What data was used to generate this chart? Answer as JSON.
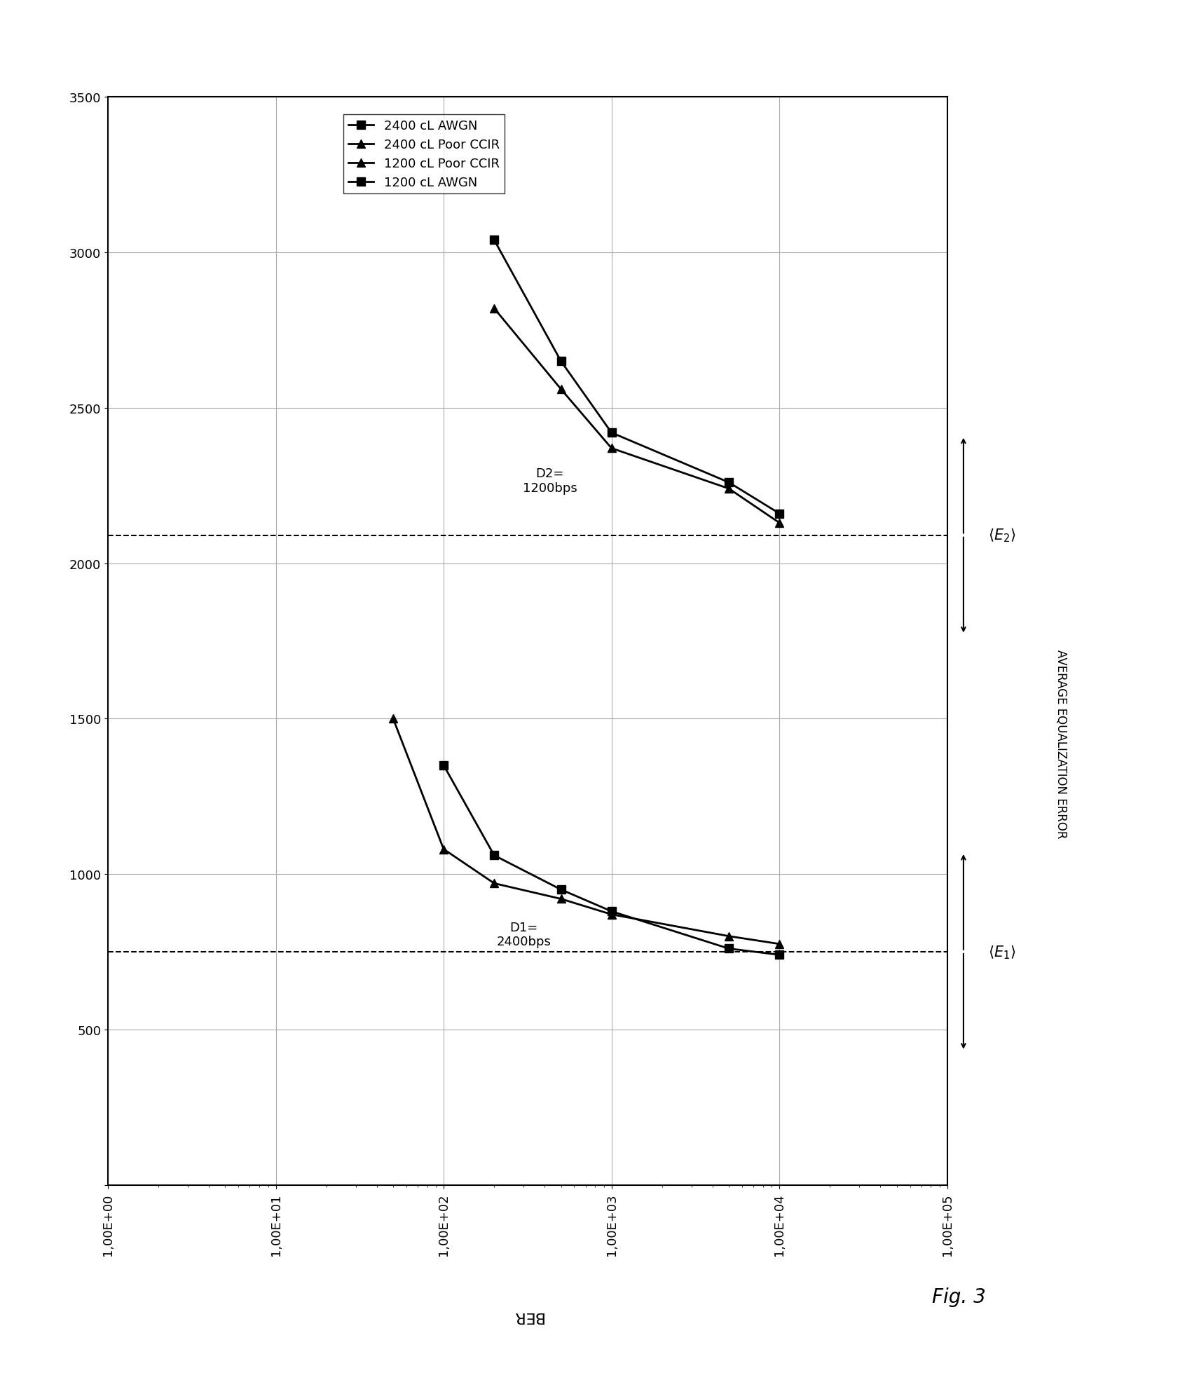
{
  "xlabel": "BER",
  "ylabel": "AVERAGE EQUALIZATION ERROR",
  "xlim_log": [
    1.0,
    100000.0
  ],
  "ylim": [
    0,
    3500
  ],
  "yticks": [
    0,
    500,
    1000,
    1500,
    2000,
    2500,
    3000,
    3500
  ],
  "xtick_vals": [
    1.0,
    10.0,
    100.0,
    1000.0,
    10000.0,
    100000.0
  ],
  "xtick_labels": [
    "1,00E+00",
    "1,00E+01",
    "1,00E+02",
    "1,00E+03",
    "1,00E+04",
    "1,00E+05"
  ],
  "series": [
    {
      "label": "2400 cL AWGN",
      "marker": "s",
      "x": [
        100.0,
        200.0,
        500.0,
        1000.0,
        5000.0,
        10000.0
      ],
      "y": [
        1350,
        1060,
        950,
        880,
        760,
        740
      ]
    },
    {
      "label": "2400 cL Poor CCIR",
      "marker": "^",
      "x": [
        50.0,
        100.0,
        200.0,
        500.0,
        1000.0,
        5000.0,
        10000.0
      ],
      "y": [
        1500,
        1080,
        970,
        920,
        870,
        800,
        775
      ]
    },
    {
      "label": "1200 cL Poor CCIR",
      "marker": "^",
      "x": [
        200.0,
        500.0,
        1000.0,
        5000.0,
        10000.0
      ],
      "y": [
        2820,
        2560,
        2370,
        2240,
        2130
      ]
    },
    {
      "label": "1200 cL AWGN",
      "marker": "s",
      "x": [
        200.0,
        500.0,
        1000.0,
        5000.0,
        10000.0
      ],
      "y": [
        3040,
        2650,
        2420,
        2260,
        2160
      ]
    }
  ],
  "E1_y": 750,
  "E2_y": 2090,
  "D1_label": "D1=\n2400bps",
  "D1_x": 300.0,
  "D1_y": 850,
  "D2_label": "D2=\n1200bps",
  "D2_x": 430.0,
  "D2_y": 2310,
  "fig_caption": "Fig. 3",
  "background_color": "#ffffff",
  "line_color": "#000000",
  "line_width": 2.0,
  "marker_size": 9,
  "grid_color": "#aaaaaa",
  "grid_lw": 0.8,
  "xlabel_fontsize": 16,
  "ylabel_fontsize": 14,
  "tick_fontsize": 13,
  "legend_fontsize": 13,
  "annotation_fontsize": 13,
  "e_label_fontsize": 15,
  "caption_fontsize": 20
}
